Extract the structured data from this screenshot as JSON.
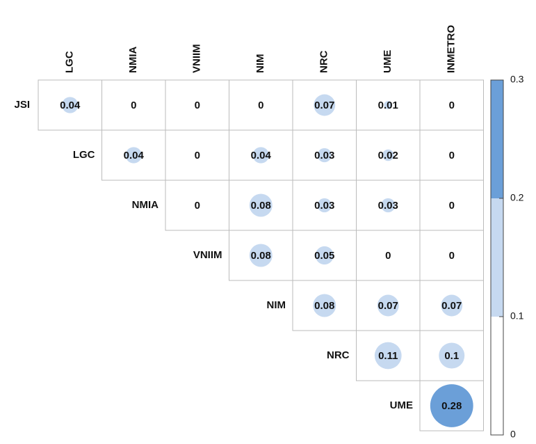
{
  "chart_data": {
    "type": "corrplot",
    "columns": [
      "LGC",
      "NMIA",
      "VNIIM",
      "NIM",
      "NRC",
      "UME",
      "INMETRO"
    ],
    "rows": [
      "JSI",
      "LGC",
      "NMIA",
      "VNIIM",
      "NIM",
      "NRC",
      "UME"
    ],
    "values": [
      [
        0.04,
        0,
        0,
        0,
        0.07,
        0.01,
        0
      ],
      [
        null,
        0.04,
        0,
        0.04,
        0.03,
        0.02,
        0
      ],
      [
        null,
        null,
        0,
        0.08,
        0.03,
        0.03,
        0
      ],
      [
        null,
        null,
        null,
        0.08,
        0.05,
        0,
        0
      ],
      [
        null,
        null,
        null,
        null,
        0.08,
        0.07,
        0.07
      ],
      [
        null,
        null,
        null,
        null,
        null,
        0.11,
        0.1
      ],
      [
        null,
        null,
        null,
        null,
        null,
        null,
        0.28
      ]
    ],
    "colorbar": {
      "lim": [
        0,
        0.3
      ],
      "ticks": [
        0,
        0.1,
        0.2,
        0.3
      ],
      "colors": [
        "#ffffff",
        "#c6d9f0",
        "#6b9fd8"
      ]
    }
  }
}
